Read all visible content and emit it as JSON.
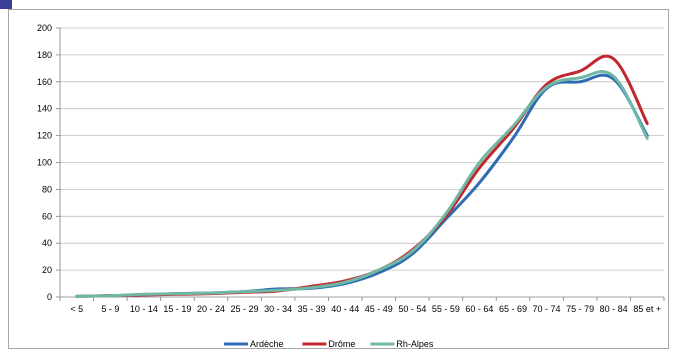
{
  "chart_data": {
    "type": "line",
    "title": "",
    "xlabel": "",
    "ylabel": "",
    "ylim": [
      0,
      200
    ],
    "yticks": [
      0,
      20,
      40,
      60,
      80,
      100,
      120,
      140,
      160,
      180,
      200
    ],
    "grid": true,
    "legend_position": "bottom",
    "categories": [
      "< 5",
      "5 - 9",
      "10 - 14",
      "15 - 19",
      "20 - 24",
      "25 - 29",
      "30 - 34",
      "35 - 39",
      "40 - 44",
      "45 - 49",
      "50 - 54",
      "55 - 59",
      "60 - 64",
      "65 - 69",
      "70 - 74",
      "75 - 79",
      "80 - 84",
      "85 et +"
    ],
    "series": [
      {
        "name": "Ardèche",
        "color": "#2e6db4",
        "values": [
          0.5,
          1,
          1.5,
          2.5,
          3,
          4,
          6,
          6.5,
          10,
          18,
          32,
          58,
          85,
          118,
          155,
          160,
          162,
          120
        ]
      },
      {
        "name": "Drôme",
        "color": "#c0282d",
        "values": [
          0.5,
          1,
          1.5,
          2,
          2.5,
          3.5,
          4.5,
          8,
          12,
          20,
          35,
          60,
          96,
          125,
          158,
          168,
          177,
          129
        ]
      },
      {
        "name": "Rh-Alpes",
        "color": "#6fb8a5",
        "values": [
          0.5,
          1,
          2,
          2.5,
          3,
          4,
          5,
          7,
          11,
          20,
          34,
          62,
          100,
          127,
          156,
          163,
          164,
          118
        ]
      }
    ]
  }
}
